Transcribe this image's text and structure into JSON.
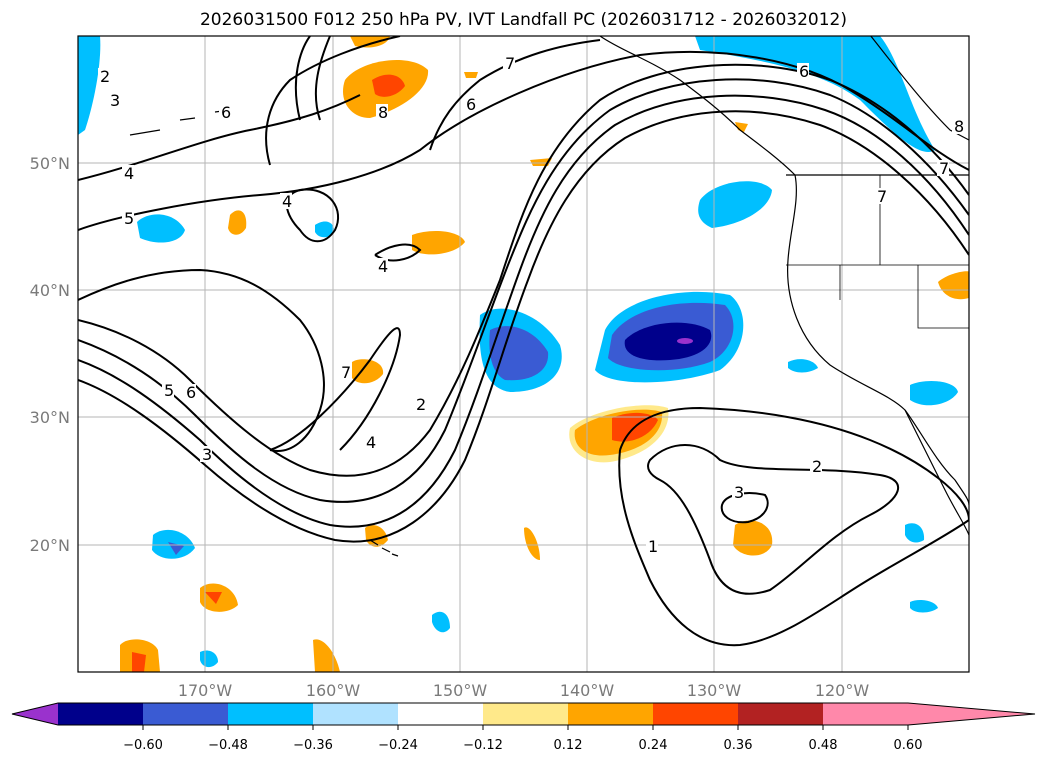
{
  "title": "2026031500 F012 250 hPa PV, IVT Landfall PC (2026031712 - 2026032012)",
  "map": {
    "lat_labels": [
      {
        "value": 50,
        "text": "50°N"
      },
      {
        "value": 40,
        "text": "40°N"
      },
      {
        "value": 30,
        "text": "30°N"
      },
      {
        "value": 20,
        "text": "20°N"
      }
    ],
    "lon_labels": [
      {
        "value": -170,
        "text": "170°W"
      },
      {
        "value": -160,
        "text": "160°W"
      },
      {
        "value": -150,
        "text": "150°W"
      },
      {
        "value": -140,
        "text": "140°W"
      },
      {
        "value": -130,
        "text": "130°W"
      },
      {
        "value": -120,
        "text": "120°W"
      }
    ],
    "extent": {
      "lon_min": -180,
      "lon_max": -110,
      "lat_min": 10,
      "lat_max": 60
    },
    "contour_labels": [
      "2",
      "3",
      "4",
      "5",
      "4",
      "6",
      "7",
      "8",
      "6",
      "7",
      "5",
      "6",
      "3",
      "7",
      "2",
      "4",
      "4",
      "2",
      "3",
      "1",
      "6",
      "8",
      "7"
    ],
    "pv_contour_levels": [
      1,
      2,
      3,
      4,
      5,
      6,
      7,
      8
    ]
  },
  "colorbar": {
    "ticks": [
      "−0.60",
      "−0.48",
      "−0.36",
      "−0.24",
      "−0.12",
      "0.12",
      "0.24",
      "0.36",
      "0.48",
      "0.60"
    ],
    "colors": [
      "#9a32cd",
      "#00008b",
      "#3a5bd3",
      "#00bfff",
      "#b0e2ff",
      "#ffffff",
      "#ffe98a",
      "#ffa500",
      "#ff4500",
      "#b22222",
      "#ff88aa"
    ]
  }
}
